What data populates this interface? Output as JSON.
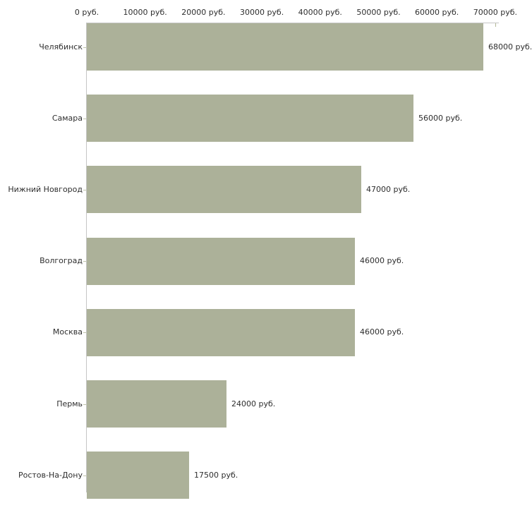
{
  "chart_data": {
    "type": "bar",
    "orientation": "horizontal",
    "title": "",
    "xlabel": "",
    "ylabel": "",
    "categories": [
      "Челябинск",
      "Самара",
      "Нижний Новгород",
      "Волгоград",
      "Москва",
      "Пермь",
      "Ростов-На-Дону"
    ],
    "values": [
      68000,
      56000,
      47000,
      46000,
      46000,
      24000,
      17500
    ],
    "value_labels": [
      "68000 руб.",
      "56000 руб.",
      "47000 руб.",
      "46000 руб.",
      "46000 руб.",
      "24000 руб.",
      "17500 руб."
    ],
    "x_axis": {
      "position": "top",
      "range": [
        0,
        70000
      ],
      "ticks": [
        0,
        10000,
        20000,
        30000,
        40000,
        50000,
        60000,
        70000
      ],
      "tick_labels": [
        "0 руб.",
        "10000 руб.",
        "20000 руб.",
        "30000 руб.",
        "40000 руб.",
        "50000 руб.",
        "60000 руб.",
        "70000 руб."
      ],
      "unit": "руб."
    },
    "grid": false,
    "legend": false,
    "colors": {
      "bar": "#acb199",
      "axis_line": "#c6c6c6",
      "axis_tick": "#b2b796",
      "category_tick": "#bfc4ab",
      "text": "#2e2e2e",
      "background": "#ffffff"
    }
  }
}
